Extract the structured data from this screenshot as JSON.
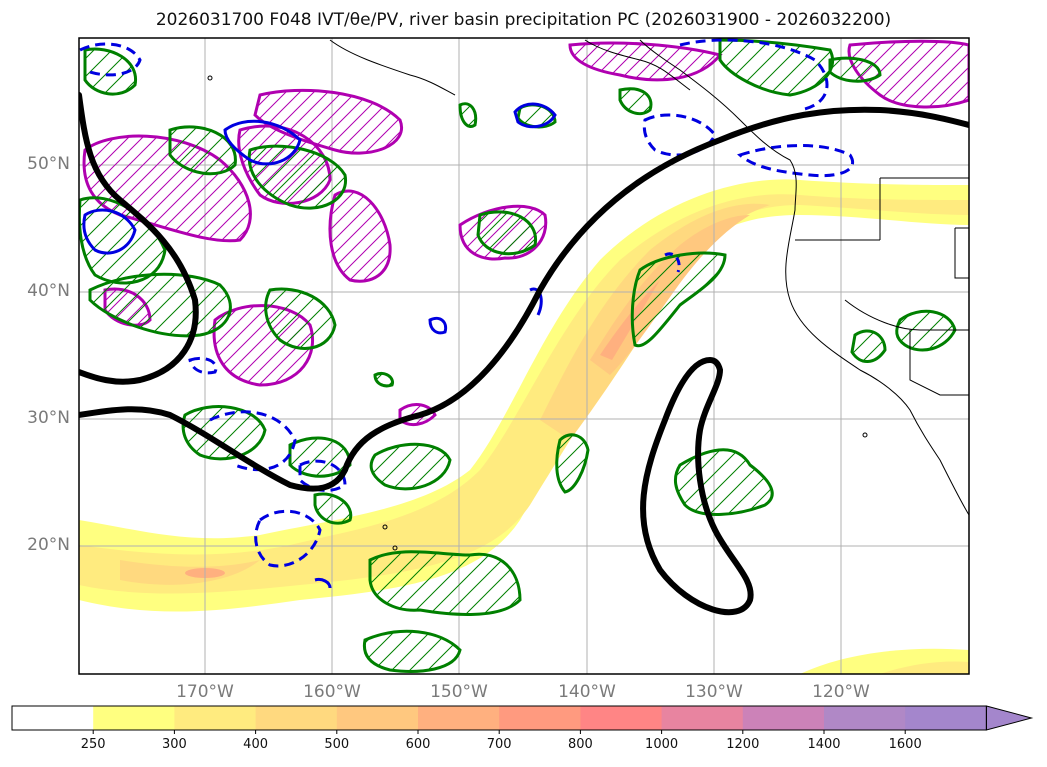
{
  "title": "2026031700 F048 IVT/θe/PV, river basin precipitation PC (2026031900 - 2026032200)",
  "lat_labels": [
    "50°N",
    "40°N",
    "30°N",
    "20°N"
  ],
  "lon_labels": [
    "170°W",
    "160°W",
    "150°W",
    "140°W",
    "130°W",
    "120°W"
  ],
  "colorbar": {
    "ticks": [
      "250",
      "300",
      "400",
      "500",
      "600",
      "700",
      "800",
      "1000",
      "1200",
      "1400",
      "1600"
    ],
    "colors": [
      "#ffffff",
      "#ffff80",
      "#ffeb7f",
      "#ffd97f",
      "#ffc87f",
      "#ffb07f",
      "#ff9a7f",
      "#ff8585",
      "#e884a0",
      "#cc82b8",
      "#b088c6",
      "#a486cc"
    ],
    "extend": "max"
  },
  "legend_colors": {
    "theta_e_contour": "#000000",
    "pv_hatch": "#b000b0",
    "precip_pc_positive": "#008000",
    "precip_pc_negative": "#0000e0",
    "coastline": "#000000"
  }
}
